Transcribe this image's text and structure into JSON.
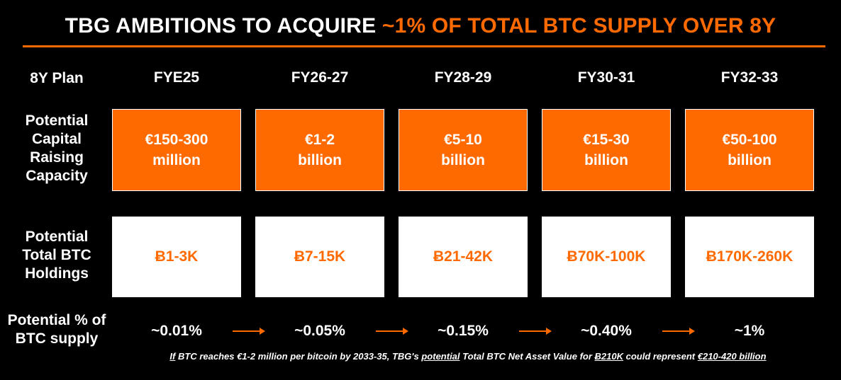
{
  "title": {
    "part1": "TBG AMBITIONS TO ACQUIRE ",
    "part2": "~1% OF TOTAL BTC SUPPLY OVER 8Y"
  },
  "colors": {
    "accent": "#ff6a00",
    "background": "#000000",
    "text": "#ffffff"
  },
  "row_labels": {
    "plan": "8Y Plan",
    "capital": "Potential Capital Raising Capacity",
    "holdings": "Potential Total BTC Holdings",
    "supply": "Potential % of BTC supply"
  },
  "columns": [
    {
      "period": "FYE25",
      "capital_line1": "€150-300",
      "capital_line2": "million",
      "holdings": "Ƀ1-3K",
      "supply": "~0.01%"
    },
    {
      "period": "FY26-27",
      "capital_line1": "€1-2",
      "capital_line2": "billion",
      "holdings": "Ƀ7-15K",
      "supply": "~0.05%"
    },
    {
      "period": "FY28-29",
      "capital_line1": "€5-10",
      "capital_line2": "billion",
      "holdings": "Ƀ21-42K",
      "supply": "~0.15%"
    },
    {
      "period": "FY30-31",
      "capital_line1": "€15-30",
      "capital_line2": "billion",
      "holdings": "Ƀ70K-100K",
      "supply": "~0.40%"
    },
    {
      "period": "FY32-33",
      "capital_line1": "€50-100",
      "capital_line2": "billion",
      "holdings": "Ƀ170K-260K",
      "supply": "~1%"
    }
  ],
  "footnote": {
    "if": "If",
    "t1": " BTC reaches €1-2 million per bitcoin by 2033-35, TBG's ",
    "potential": "potential",
    "t2": " Total BTC Net Asset Value for ",
    "btc": "Ƀ210K",
    "t3": " could represent ",
    "eur": "€210-420 billion"
  },
  "icons": {
    "arrow": "arrow-right-icon"
  }
}
